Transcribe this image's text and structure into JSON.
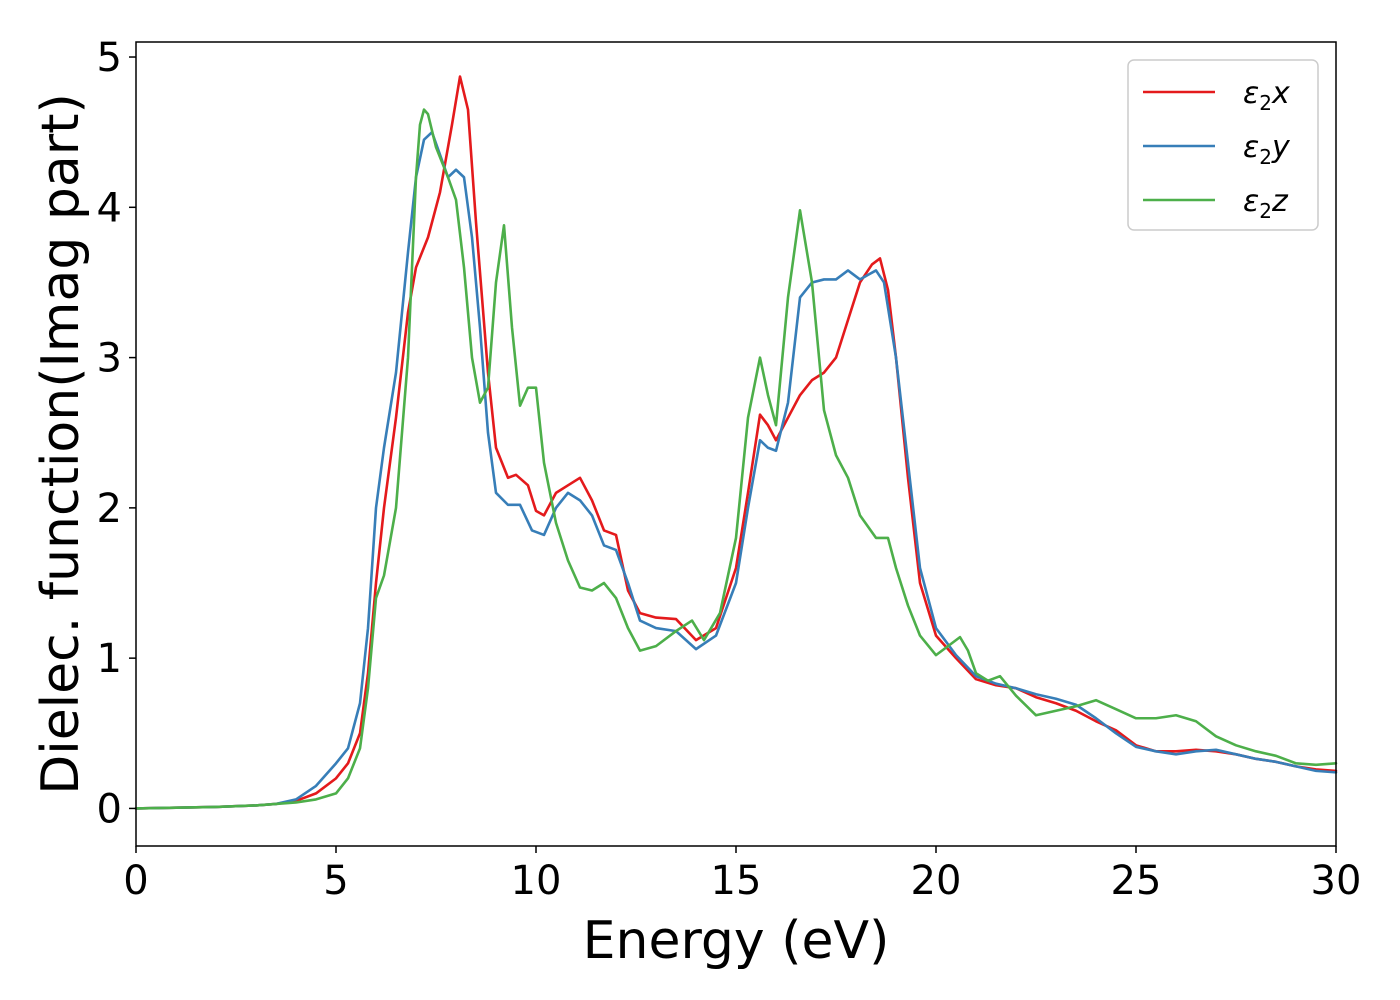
{
  "chart_data": {
    "type": "line",
    "title": "",
    "xlabel": "Energy (eV)",
    "ylabel": "Dielec. function(Imag part)",
    "xlim": [
      0,
      30
    ],
    "ylim": [
      -0.25,
      5.1
    ],
    "xticks": [
      "0",
      "5",
      "10",
      "15",
      "20",
      "25",
      "30"
    ],
    "yticks": [
      "0",
      "1",
      "2",
      "3",
      "4",
      "5"
    ],
    "grid": false,
    "legend_position": "top-right",
    "series": [
      {
        "name": "ε2x",
        "legend": {
          "base": "ε",
          "sub": "2",
          "var": "x"
        },
        "color": "#e41a1c",
        "x": [
          0,
          1,
          2,
          3,
          3.5,
          4,
          4.5,
          5,
          5.3,
          5.6,
          5.8,
          6,
          6.2,
          6.5,
          6.8,
          7,
          7.3,
          7.6,
          7.9,
          8.1,
          8.3,
          8.5,
          8.8,
          9,
          9.3,
          9.5,
          9.8,
          10,
          10.2,
          10.5,
          10.8,
          11.1,
          11.4,
          11.7,
          12,
          12.3,
          12.6,
          13,
          13.5,
          14,
          14.5,
          15,
          15.3,
          15.6,
          15.8,
          16,
          16.3,
          16.6,
          16.9,
          17.2,
          17.5,
          17.8,
          18.1,
          18.4,
          18.6,
          18.8,
          19,
          19.3,
          19.6,
          20,
          20.5,
          21,
          21.5,
          22,
          22.5,
          23,
          23.5,
          24,
          24.5,
          25,
          25.5,
          26,
          26.5,
          27,
          27.5,
          28,
          28.5,
          29,
          29.5,
          30
        ],
        "y": [
          0,
          0.005,
          0.01,
          0.02,
          0.03,
          0.05,
          0.1,
          0.2,
          0.3,
          0.5,
          0.9,
          1.5,
          2.0,
          2.6,
          3.3,
          3.6,
          3.8,
          4.1,
          4.55,
          4.87,
          4.65,
          3.9,
          2.9,
          2.4,
          2.2,
          2.22,
          2.15,
          1.98,
          1.95,
          2.1,
          2.15,
          2.2,
          2.05,
          1.85,
          1.82,
          1.45,
          1.3,
          1.27,
          1.26,
          1.12,
          1.2,
          1.6,
          2.1,
          2.62,
          2.55,
          2.45,
          2.6,
          2.75,
          2.85,
          2.9,
          3.0,
          3.25,
          3.5,
          3.62,
          3.66,
          3.45,
          3.0,
          2.2,
          1.5,
          1.15,
          1.0,
          0.86,
          0.82,
          0.8,
          0.74,
          0.7,
          0.65,
          0.58,
          0.52,
          0.42,
          0.38,
          0.38,
          0.39,
          0.38,
          0.36,
          0.33,
          0.31,
          0.28,
          0.26,
          0.25
        ]
      },
      {
        "name": "ε2y",
        "legend": {
          "base": "ε",
          "sub": "2",
          "var": "y"
        },
        "color": "#377eb8",
        "x": [
          0,
          1,
          2,
          3,
          3.5,
          4,
          4.5,
          5,
          5.3,
          5.6,
          5.8,
          6,
          6.2,
          6.5,
          6.8,
          7,
          7.2,
          7.4,
          7.6,
          7.8,
          8,
          8.2,
          8.4,
          8.6,
          8.8,
          9,
          9.3,
          9.6,
          9.9,
          10.2,
          10.5,
          10.8,
          11.1,
          11.4,
          11.7,
          12,
          12.3,
          12.6,
          13,
          13.5,
          14,
          14.5,
          15,
          15.3,
          15.6,
          15.8,
          16,
          16.3,
          16.6,
          16.9,
          17.2,
          17.5,
          17.8,
          18.1,
          18.3,
          18.5,
          18.7,
          19,
          19.3,
          19.6,
          20,
          20.5,
          21,
          21.5,
          22,
          22.5,
          23,
          23.5,
          24,
          24.5,
          25,
          25.5,
          26,
          26.5,
          27,
          27.5,
          28,
          28.5,
          29,
          29.5,
          30
        ],
        "y": [
          0,
          0.005,
          0.01,
          0.02,
          0.03,
          0.06,
          0.15,
          0.3,
          0.4,
          0.7,
          1.2,
          2.0,
          2.4,
          2.9,
          3.7,
          4.2,
          4.45,
          4.5,
          4.35,
          4.2,
          4.25,
          4.2,
          3.8,
          3.2,
          2.5,
          2.1,
          2.02,
          2.02,
          1.85,
          1.82,
          2.0,
          2.1,
          2.05,
          1.95,
          1.75,
          1.72,
          1.5,
          1.25,
          1.2,
          1.18,
          1.06,
          1.15,
          1.5,
          2.0,
          2.45,
          2.4,
          2.38,
          2.7,
          3.4,
          3.5,
          3.52,
          3.52,
          3.58,
          3.52,
          3.55,
          3.58,
          3.5,
          3.0,
          2.3,
          1.6,
          1.2,
          1.02,
          0.88,
          0.83,
          0.8,
          0.76,
          0.73,
          0.69,
          0.6,
          0.5,
          0.41,
          0.38,
          0.36,
          0.38,
          0.39,
          0.36,
          0.33,
          0.31,
          0.28,
          0.25,
          0.24
        ]
      },
      {
        "name": "ε2z",
        "legend": {
          "base": "ε",
          "sub": "2",
          "var": "z"
        },
        "color": "#4daf4a",
        "x": [
          0,
          1,
          2,
          3,
          3.5,
          4,
          4.5,
          5,
          5.3,
          5.6,
          5.8,
          6,
          6.2,
          6.5,
          6.8,
          7,
          7.1,
          7.2,
          7.3,
          7.5,
          7.8,
          8,
          8.2,
          8.4,
          8.6,
          8.8,
          9,
          9.2,
          9.4,
          9.6,
          9.8,
          10,
          10.2,
          10.5,
          10.8,
          11.1,
          11.4,
          11.7,
          12,
          12.3,
          12.6,
          13,
          13.5,
          13.9,
          14.2,
          14.6,
          15,
          15.3,
          15.6,
          15.8,
          16,
          16.3,
          16.6,
          16.9,
          17.2,
          17.5,
          17.8,
          18.1,
          18.5,
          18.8,
          19,
          19.3,
          19.6,
          20,
          20.3,
          20.6,
          20.8,
          21,
          21.3,
          21.6,
          22,
          22.5,
          23,
          23.5,
          24,
          24.5,
          25,
          25.5,
          26,
          26.5,
          27,
          27.5,
          28,
          28.5,
          29,
          29.5,
          30
        ],
        "y": [
          0,
          0.005,
          0.01,
          0.02,
          0.03,
          0.04,
          0.06,
          0.1,
          0.2,
          0.4,
          0.8,
          1.4,
          1.55,
          2.0,
          3.0,
          4.2,
          4.55,
          4.65,
          4.62,
          4.4,
          4.2,
          4.05,
          3.6,
          3.0,
          2.7,
          2.8,
          3.5,
          3.88,
          3.2,
          2.68,
          2.8,
          2.8,
          2.3,
          1.9,
          1.65,
          1.47,
          1.45,
          1.5,
          1.4,
          1.2,
          1.05,
          1.08,
          1.18,
          1.25,
          1.12,
          1.3,
          1.8,
          2.6,
          3.0,
          2.75,
          2.55,
          3.4,
          3.98,
          3.5,
          2.65,
          2.35,
          2.2,
          1.95,
          1.8,
          1.8,
          1.6,
          1.35,
          1.15,
          1.02,
          1.08,
          1.14,
          1.05,
          0.9,
          0.85,
          0.88,
          0.75,
          0.62,
          0.65,
          0.68,
          0.72,
          0.66,
          0.6,
          0.6,
          0.62,
          0.58,
          0.48,
          0.42,
          0.38,
          0.35,
          0.3,
          0.29,
          0.3
        ]
      }
    ]
  }
}
